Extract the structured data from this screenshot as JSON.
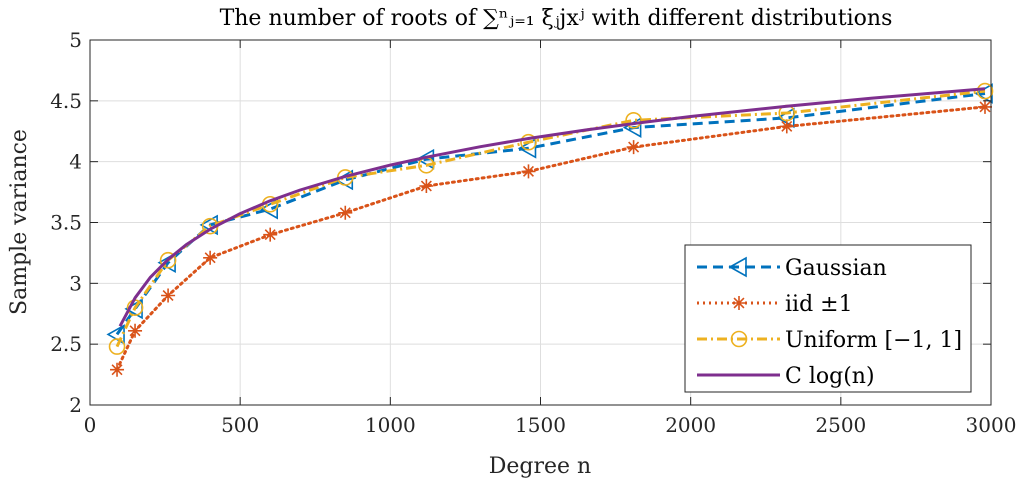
{
  "chart_data": {
    "type": "line",
    "title": "The number of roots of ∑ⁿⱼ₌₁ ξⱼjxʲ with different distributions",
    "xlabel": "Degree n",
    "ylabel": "Sample variance",
    "xlim": [
      0,
      3000
    ],
    "ylim": [
      2,
      5
    ],
    "xticks": [
      0,
      500,
      1000,
      1500,
      2000,
      2500,
      3000
    ],
    "yticks": [
      2,
      2.5,
      3,
      3.5,
      4,
      4.5,
      5
    ],
    "xtick_labels": [
      "0",
      "500",
      "1000",
      "1500",
      "2000",
      "2500",
      "3000"
    ],
    "ytick_labels": [
      "2",
      "2.5",
      "3",
      "3.5",
      "4",
      "4.5",
      "5"
    ],
    "grid": true,
    "legend_position": "bottom-right",
    "series": [
      {
        "name": "Gaussian",
        "color": "#0072BD",
        "line_style": "dashed",
        "marker": "triangle-left",
        "x": [
          90,
          150,
          260,
          400,
          600,
          850,
          1120,
          1460,
          1810,
          2320,
          2980
        ],
        "y": [
          2.58,
          2.79,
          3.17,
          3.48,
          3.61,
          3.85,
          4.02,
          4.11,
          4.28,
          4.36,
          4.56
        ]
      },
      {
        "name": "iid ±1",
        "color": "#D95319",
        "line_style": "dotted",
        "marker": "asterisk",
        "x": [
          90,
          150,
          260,
          400,
          600,
          850,
          1120,
          1460,
          1810,
          2320,
          2980
        ],
        "y": [
          2.29,
          2.61,
          2.9,
          3.21,
          3.4,
          3.58,
          3.8,
          3.92,
          4.12,
          4.29,
          4.45
        ]
      },
      {
        "name": "Uniform [−1, 1]",
        "color": "#EDB120",
        "line_style": "dashdot",
        "marker": "circle",
        "x": [
          90,
          150,
          260,
          400,
          600,
          850,
          1120,
          1460,
          1810,
          2320,
          2980
        ],
        "y": [
          2.48,
          2.8,
          3.19,
          3.47,
          3.65,
          3.87,
          3.97,
          4.16,
          4.34,
          4.4,
          4.58
        ]
      },
      {
        "name": "C log(n)",
        "color": "#7E2F8E",
        "line_style": "solid",
        "marker": "none",
        "formula": "0.575 * ln(n)",
        "x": [
          100,
          150,
          200,
          260,
          320,
          400,
          500,
          600,
          700,
          850,
          1000,
          1120,
          1300,
          1460,
          1650,
          1810,
          2000,
          2320,
          2600,
          2980
        ],
        "y": [
          2.648,
          2.881,
          3.047,
          3.197,
          3.317,
          3.445,
          3.573,
          3.678,
          3.767,
          3.879,
          3.972,
          4.037,
          4.123,
          4.19,
          4.26,
          4.313,
          4.371,
          4.456,
          4.522,
          4.6
        ]
      }
    ]
  }
}
